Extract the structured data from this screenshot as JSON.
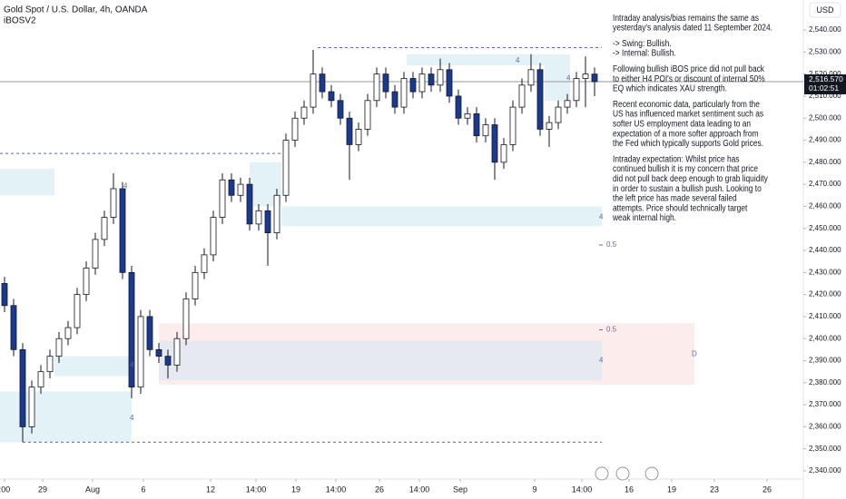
{
  "chart_data": {
    "type": "candlestick",
    "title": "Gold Spot / U.S. Dollar, 4h, OANDA",
    "subtitle": "iBOSV2",
    "currency": "USD",
    "up_color": "#ffffff",
    "down_color": "#1a3a8f",
    "wick_color": "#131722",
    "open": [
      2425,
      2415,
      2395,
      2360,
      2378,
      2385,
      2392,
      2400,
      2405,
      2420,
      2432,
      2445,
      2455,
      2468,
      2430,
      2378,
      2410,
      2395,
      2392,
      2388,
      2400,
      2418,
      2430,
      2438,
      2455,
      2472,
      2465,
      2470,
      2452,
      2458,
      2448,
      2465,
      2490,
      2500,
      2505,
      2520,
      2512,
      2508,
      2500,
      2488,
      2495,
      2508,
      2520,
      2512,
      2505,
      2518,
      2512,
      2520,
      2515,
      2522,
      2510,
      2500,
      2502,
      2492,
      2497,
      2480,
      2488,
      2505,
      2515,
      2522,
      2495,
      2498,
      2505,
      2508,
      2518,
      2520
    ],
    "high": [
      2428,
      2418,
      2398,
      2381,
      2388,
      2395,
      2403,
      2408,
      2423,
      2435,
      2448,
      2458,
      2475,
      2471,
      2433,
      2413,
      2413,
      2398,
      2395,
      2403,
      2421,
      2433,
      2441,
      2458,
      2475,
      2475,
      2473,
      2473,
      2461,
      2461,
      2468,
      2493,
      2503,
      2508,
      2531,
      2523,
      2515,
      2511,
      2503,
      2498,
      2511,
      2523,
      2523,
      2515,
      2521,
      2521,
      2523,
      2523,
      2527,
      2525,
      2513,
      2505,
      2505,
      2500,
      2500,
      2491,
      2508,
      2518,
      2529,
      2525,
      2501,
      2508,
      2511,
      2521,
      2528,
      2523
    ],
    "low": [
      2412,
      2392,
      2353,
      2357,
      2375,
      2382,
      2389,
      2397,
      2402,
      2417,
      2429,
      2442,
      2452,
      2427,
      2373,
      2375,
      2392,
      2389,
      2382,
      2385,
      2397,
      2415,
      2427,
      2435,
      2452,
      2462,
      2462,
      2449,
      2449,
      2433,
      2445,
      2462,
      2487,
      2497,
      2502,
      2509,
      2505,
      2497,
      2472,
      2485,
      2492,
      2505,
      2509,
      2502,
      2502,
      2509,
      2509,
      2512,
      2512,
      2507,
      2497,
      2497,
      2489,
      2489,
      2472,
      2477,
      2485,
      2502,
      2512,
      2492,
      2487,
      2495,
      2502,
      2505,
      2505,
      2510
    ],
    "close": [
      2415,
      2395,
      2360,
      2378,
      2385,
      2392,
      2400,
      2405,
      2420,
      2432,
      2445,
      2455,
      2468,
      2430,
      2378,
      2410,
      2395,
      2392,
      2388,
      2400,
      2418,
      2430,
      2438,
      2455,
      2472,
      2465,
      2470,
      2452,
      2458,
      2448,
      2465,
      2490,
      2500,
      2505,
      2520,
      2512,
      2508,
      2500,
      2488,
      2495,
      2508,
      2520,
      2512,
      2505,
      2518,
      2512,
      2520,
      2515,
      2522,
      2510,
      2500,
      2502,
      2492,
      2497,
      2480,
      2488,
      2505,
      2515,
      2522,
      2495,
      2498,
      2505,
      2508,
      2518,
      2520,
      2516.57
    ],
    "xlim": [
      -0.5,
      88
    ],
    "xticks": [
      {
        "value": 0,
        "label": ":00"
      },
      {
        "value": 4.2,
        "label": "29"
      },
      {
        "value": 9.7,
        "label": "Aug"
      },
      {
        "value": 15.3,
        "label": "6"
      },
      {
        "value": 22.7,
        "label": "12"
      },
      {
        "value": 27.7,
        "label": "14:00"
      },
      {
        "value": 32.1,
        "label": "19"
      },
      {
        "value": 36.5,
        "label": "14:00"
      },
      {
        "value": 41.3,
        "label": "26"
      },
      {
        "value": 45.7,
        "label": "14:00"
      },
      {
        "value": 50.2,
        "label": "Sep"
      },
      {
        "value": 58.4,
        "label": "9"
      },
      {
        "value": 63.6,
        "label": "14:00"
      },
      {
        "value": 68.8,
        "label": "16"
      },
      {
        "value": 73.5,
        "label": "19"
      },
      {
        "value": 78.2,
        "label": "23"
      },
      {
        "value": 84,
        "label": "26"
      }
    ],
    "ylim": [
      2336.3,
      2553.6
    ],
    "yticks": [
      {
        "value": 2340,
        "label": "2,340.000"
      },
      {
        "value": 2350,
        "label": "2,350.000"
      },
      {
        "value": 2360,
        "label": "2,360.000"
      },
      {
        "value": 2370,
        "label": "2,370.000"
      },
      {
        "value": 2380,
        "label": "2,380.000"
      },
      {
        "value": 2390,
        "label": "2,390.000"
      },
      {
        "value": 2400,
        "label": "2,400.000"
      },
      {
        "value": 2410,
        "label": "2,410.000"
      },
      {
        "value": 2420,
        "label": "2,420.000"
      },
      {
        "value": 2430,
        "label": "2,430.000"
      },
      {
        "value": 2440,
        "label": "2,440.000"
      },
      {
        "value": 2450,
        "label": "2,450.000"
      },
      {
        "value": 2460,
        "label": "2,460.000"
      },
      {
        "value": 2470,
        "label": "2,470.000"
      },
      {
        "value": 2480,
        "label": "2,480.000"
      },
      {
        "value": 2490,
        "label": "2,490.000"
      },
      {
        "value": 2500,
        "label": "2,500.000"
      },
      {
        "value": 2510,
        "label": "2,510.000"
      },
      {
        "value": 2520,
        "label": "2,520.000"
      },
      {
        "value": 2530,
        "label": "2,530.000"
      },
      {
        "value": 2540,
        "label": "2,540.000"
      }
    ],
    "last_price": {
      "value": 2516.57,
      "label": "2,516.570"
    },
    "countdown": "01:02:51",
    "zones": [
      {
        "top": 2477,
        "bottom": 2465,
        "start": -0.5,
        "end": 5.5,
        "color": "#e3f2f6"
      },
      {
        "top": 2392,
        "bottom": 2383,
        "start": 5.5,
        "end": 14,
        "color": "#e3f2f6"
      },
      {
        "top": 2376,
        "bottom": 2353,
        "start": -0.5,
        "end": 14,
        "color": "#e3f2f6"
      },
      {
        "top": 2480,
        "bottom": 2460,
        "start": 27,
        "end": 30.5,
        "color": "#e3f2f6"
      },
      {
        "top": 2460,
        "bottom": 2451,
        "start": 30.5,
        "end": 65.8,
        "color": "#e3f2f6"
      },
      {
        "top": 2529,
        "bottom": 2524,
        "start": 44.3,
        "end": 62.3,
        "color": "#e3f2f6"
      },
      {
        "top": 2524,
        "bottom": 2508,
        "start": 59.5,
        "end": 62.3,
        "color": "#e3f2f6"
      },
      {
        "top": 2407,
        "bottom": 2379,
        "start": 17,
        "end": 76,
        "color": "#fdecec"
      },
      {
        "top": 2399,
        "bottom": 2381,
        "start": 17,
        "end": 65.8,
        "color": "#e6e9ef"
      }
    ],
    "levels": [
      {
        "value": 2532,
        "start": 34.5,
        "end": 65.8
      },
      {
        "value": 2484,
        "start": -0.5,
        "end": 30.5
      },
      {
        "value": 2353,
        "start": 2,
        "end": 65.8
      }
    ],
    "annotations": [
      {
        "text": "4",
        "x": 13.1,
        "y": 2469
      },
      {
        "text": "4",
        "x": 56.3,
        "y": 2526
      },
      {
        "text": "4",
        "x": 61.9,
        "y": 2518
      },
      {
        "text": "4",
        "x": 65.5,
        "y": 2455
      },
      {
        "text": "4",
        "x": 13.8,
        "y": 2388
      },
      {
        "text": "4",
        "x": 13.8,
        "y": 2364
      },
      {
        "text": "4",
        "x": 65.5,
        "y": 2390
      },
      {
        "text": "0.5",
        "x": 66.3,
        "y": 2442.5
      },
      {
        "text": "0.5",
        "x": 66.3,
        "y": 2404
      },
      {
        "text": "D",
        "x": 75.7,
        "y": 2393
      }
    ],
    "note": [
      [
        "Intraday analysis/bias remains the same as",
        "yesterday's analysis dated 11 September 2024."
      ],
      [
        "-> Swing:  Bullish.",
        "-> Internal:  Bullish."
      ],
      [
        "Following bullish iBOS price did not pull back",
        "to either H4 POI's or discount of internal 50%",
        "EQ which indicates XAU strength."
      ],
      [
        "Recent economic data, particularly from the",
        "US has influenced market sentiment such as",
        "softer US employment data leading to an",
        "expectation of a more softer approach from",
        "the Fed which typically supports Gold prices."
      ],
      [
        "Intraday expectation: Whilst price has",
        "continued bullish it is my concern that price",
        "did not pull back deep enough to grab liquidity",
        "in order to sustain a bullish push.  Looking to",
        "the left price has made several failed",
        "attempts.  Price should technically target",
        "weak internal high."
      ]
    ]
  }
}
